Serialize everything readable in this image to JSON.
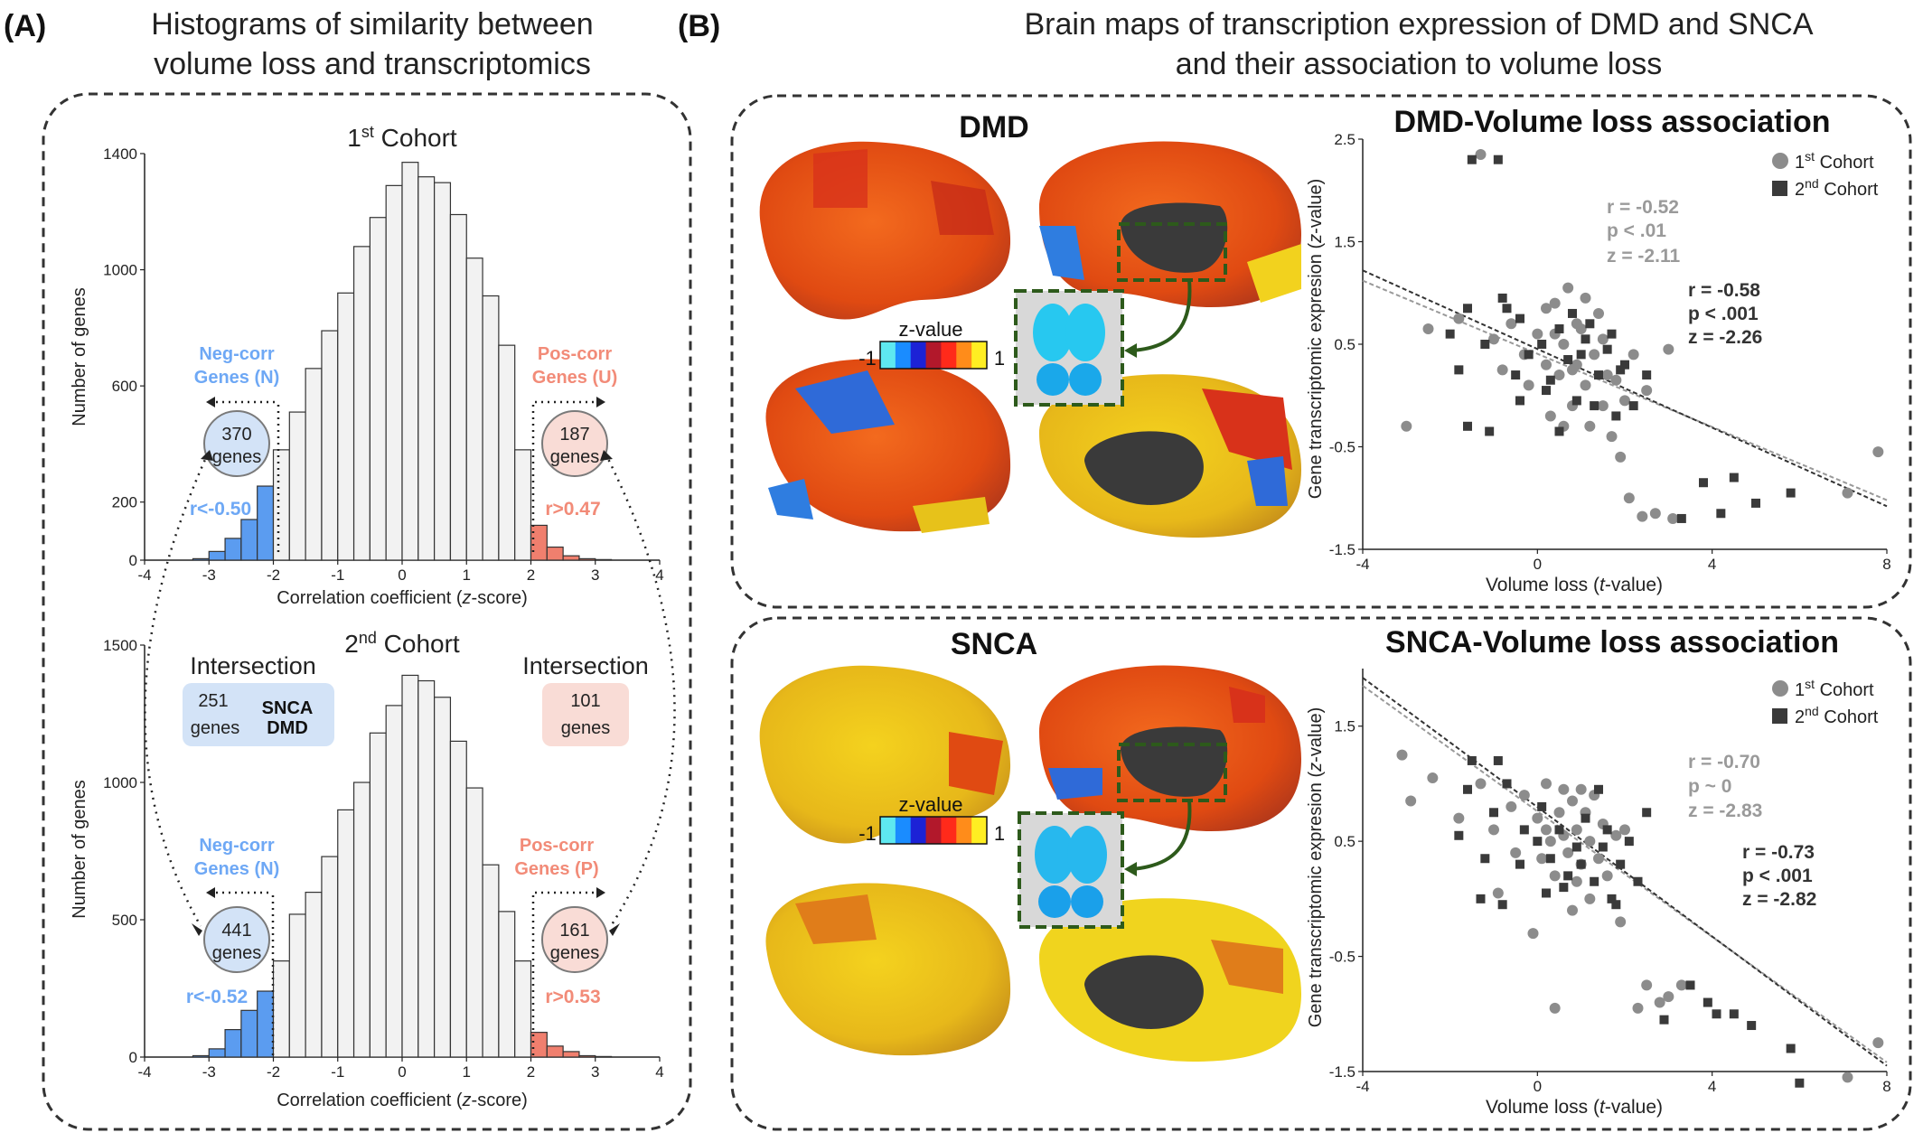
{
  "panel_a": {
    "label": "(A)",
    "title_line1": "Histograms of similarity between",
    "title_line2": "volume loss and transcriptomics",
    "cohort1_title": "1",
    "cohort1_sup": "st",
    "cohort1_rest": " Cohort",
    "cohort2_title": "2",
    "cohort2_sup": "nd",
    "cohort2_rest": " Cohort",
    "ylabel": "Number of genes",
    "xlabel": "Correlation coefficient (",
    "xlabel_italic": "z",
    "xlabel_end": "-score)",
    "top": {
      "neg_label1": "Neg-corr",
      "neg_label2": "Genes (N)",
      "pos_label1": "Pos-corr",
      "pos_label2": "Genes (U)",
      "neg_count": "370",
      "pos_count": "187",
      "genes_word": "genes",
      "neg_thresh": "r<-0.50",
      "pos_thresh": "r>0.47"
    },
    "bottom": {
      "neg_label1": "Neg-corr",
      "neg_label2": "Genes (N)",
      "pos_label1": "Pos-corr",
      "pos_label2": "Genes (P)",
      "neg_count": "441",
      "pos_count": "161",
      "genes_word": "genes",
      "neg_thresh": "r<-0.52",
      "pos_thresh": "r>0.53"
    },
    "intersection_word": "Intersection",
    "inter_left_count": "251",
    "inter_left_genes": "genes",
    "inter_left_g1": "SNCA",
    "inter_left_g2": "DMD",
    "inter_right_count": "101",
    "inter_right_genes": "genes"
  },
  "panel_b": {
    "label": "(B)",
    "title_line1": "Brain maps of transcription expression of DMD and SNCA",
    "title_line2": "and their association to volume loss",
    "dmd_title": "DMD",
    "snca_title": "SNCA",
    "dmd_scatter_title": "DMD-Volume loss association",
    "snca_scatter_title": "SNCA-Volume loss association",
    "colorbar_label": "z-value",
    "colorbar_min": "-1",
    "colorbar_max": "1",
    "colorbar_colors": [
      "#5ee8f0",
      "#1a8cff",
      "#1c22d6",
      "#b2182b",
      "#ff2a1a",
      "#ff8c1a",
      "#ffee22"
    ],
    "legend_c1": "1",
    "legend_c1_sup": "st",
    "legend_c1_rest": " Cohort",
    "legend_c2": "2",
    "legend_c2_sup": "nd",
    "legend_c2_rest": " Cohort",
    "scatter_ylabel_a": "Gene transcriptomic expresion (",
    "scatter_ylabel_i": "z",
    "scatter_ylabel_b": "-value)",
    "scatter_xlabel_a": "Volume loss (",
    "scatter_xlabel_i": "t",
    "scatter_xlabel_b": "-value)",
    "dmd_stats1": [
      "r = -0.52",
      "p < .01",
      "z =  -2.11"
    ],
    "dmd_stats2": [
      "r = -0.58",
      "p < .001",
      "z =  -2.26"
    ],
    "snca_stats1": [
      "r = -0.70",
      "p ~ 0",
      "z =  -2.83"
    ],
    "snca_stats2": [
      "r = -0.73",
      "p < .001",
      "z =  -2.82"
    ]
  },
  "colors": {
    "neg_bar": "#5b9cf0",
    "pos_bar": "#f07f6e",
    "neg_text": "#6ea8f5",
    "pos_text": "#f28b78",
    "bar_neutral": "#f2f2f2",
    "cohort1_marker": "#8c8c8c",
    "cohort2_marker": "#3a3a3a"
  },
  "chart_data": [
    {
      "type": "bar",
      "title": "1st Cohort",
      "xlabel": "Correlation coefficient (z-score)",
      "ylabel": "Number of genes",
      "xlim": [
        -4,
        4
      ],
      "ylim": [
        0,
        1400
      ],
      "bin_width": 0.25,
      "x": [
        -3.125,
        -2.875,
        -2.625,
        -2.375,
        -2.125,
        -1.875,
        -1.625,
        -1.375,
        -1.125,
        -0.875,
        -0.625,
        -0.375,
        -0.125,
        0.125,
        0.375,
        0.625,
        0.875,
        1.125,
        1.375,
        1.625,
        1.875,
        2.125,
        2.375,
        2.625,
        2.875,
        3.125
      ],
      "values": [
        5,
        30,
        75,
        140,
        255,
        380,
        510,
        660,
        790,
        920,
        1080,
        1180,
        1290,
        1370,
        1320,
        1300,
        1190,
        1040,
        910,
        740,
        380,
        120,
        45,
        15,
        5,
        2
      ],
      "highlight_neg_below": -2,
      "highlight_pos_above": 2
    },
    {
      "type": "bar",
      "title": "2nd Cohort",
      "xlabel": "Correlation coefficient (z-score)",
      "ylabel": "Number of genes",
      "xlim": [
        -4,
        4
      ],
      "ylim": [
        0,
        1500
      ],
      "bin_width": 0.25,
      "x": [
        -3.125,
        -2.875,
        -2.625,
        -2.375,
        -2.125,
        -1.875,
        -1.625,
        -1.375,
        -1.125,
        -0.875,
        -0.625,
        -0.375,
        -0.125,
        0.125,
        0.375,
        0.625,
        0.875,
        1.125,
        1.375,
        1.625,
        1.875,
        2.125,
        2.375,
        2.625,
        2.875,
        3.125
      ],
      "values": [
        5,
        30,
        100,
        170,
        240,
        350,
        520,
        600,
        730,
        900,
        1000,
        1180,
        1280,
        1390,
        1370,
        1310,
        1150,
        980,
        700,
        530,
        350,
        90,
        40,
        20,
        5,
        2
      ],
      "highlight_neg_below": -2,
      "highlight_pos_above": 2
    },
    {
      "type": "scatter",
      "title": "DMD-Volume loss association",
      "xlabel": "Volume loss (t-value)",
      "ylabel": "Gene transcriptomic expresion (z-value)",
      "xlim": [
        -4,
        8
      ],
      "ylim": [
        -1.5,
        2.5
      ],
      "xticks": [
        -4,
        0,
        4,
        8
      ],
      "yticks": [
        -1.5,
        -0.5,
        0.5,
        1.5,
        2.5
      ],
      "legend_position": "top-right",
      "series": [
        {
          "name": "1st Cohort",
          "marker": "circle",
          "points": [
            [
              -1.3,
              2.35
            ],
            [
              -2.5,
              0.65
            ],
            [
              -3.0,
              -0.3
            ],
            [
              -1.8,
              0.75
            ],
            [
              -1.0,
              0.55
            ],
            [
              -0.6,
              0.7
            ],
            [
              -0.3,
              0.4
            ],
            [
              0.0,
              0.6
            ],
            [
              0.2,
              0.3
            ],
            [
              0.4,
              0.9
            ],
            [
              0.5,
              0.2
            ],
            [
              0.6,
              0.5
            ],
            [
              0.7,
              1.05
            ],
            [
              0.8,
              -0.1
            ],
            [
              0.9,
              0.3
            ],
            [
              1.0,
              0.65
            ],
            [
              1.1,
              0.1
            ],
            [
              1.2,
              -0.3
            ],
            [
              1.3,
              0.4
            ],
            [
              1.4,
              0.8
            ],
            [
              1.5,
              -0.1
            ],
            [
              1.6,
              0.2
            ],
            [
              1.7,
              -0.4
            ],
            [
              1.8,
              0.15
            ],
            [
              2.0,
              -0.05
            ],
            [
              2.2,
              0.4
            ],
            [
              0.3,
              -0.2
            ],
            [
              -0.2,
              0.1
            ],
            [
              0.6,
              -0.3
            ],
            [
              0.9,
              0.7
            ],
            [
              1.1,
              0.95
            ],
            [
              0.4,
              0.6
            ],
            [
              0.8,
              0.25
            ],
            [
              1.9,
              -0.6
            ],
            [
              2.1,
              -1.0
            ],
            [
              2.4,
              -1.18
            ],
            [
              2.7,
              -1.15
            ],
            [
              3.1,
              -1.2
            ],
            [
              2.5,
              0.05
            ],
            [
              -0.8,
              0.25
            ],
            [
              7.8,
              -0.55
            ],
            [
              7.1,
              -0.95
            ],
            [
              0.2,
              0.85
            ],
            [
              1.5,
              0.55
            ],
            [
              3.0,
              0.45
            ]
          ]
        },
        {
          "name": "2nd Cohort",
          "marker": "square",
          "points": [
            [
              -1.5,
              2.3
            ],
            [
              -0.9,
              2.3
            ],
            [
              -1.6,
              0.85
            ],
            [
              -1.2,
              0.5
            ],
            [
              -2.0,
              0.6
            ],
            [
              -1.8,
              0.25
            ],
            [
              -0.7,
              0.85
            ],
            [
              -0.4,
              0.75
            ],
            [
              -0.2,
              0.4
            ],
            [
              0.1,
              0.5
            ],
            [
              0.3,
              0.15
            ],
            [
              0.5,
              0.65
            ],
            [
              0.7,
              0.35
            ],
            [
              0.9,
              -0.05
            ],
            [
              1.0,
              0.4
            ],
            [
              1.2,
              0.7
            ],
            [
              1.4,
              0.2
            ],
            [
              1.6,
              0.45
            ],
            [
              1.8,
              -0.2
            ],
            [
              2.0,
              0.3
            ],
            [
              2.2,
              -0.1
            ],
            [
              -0.4,
              -0.05
            ],
            [
              -0.8,
              0.95
            ],
            [
              0.5,
              -0.35
            ],
            [
              1.3,
              -0.1
            ],
            [
              1.7,
              0.6
            ],
            [
              -1.1,
              -0.35
            ],
            [
              -1.6,
              -0.3
            ],
            [
              1.9,
              0.25
            ],
            [
              4.2,
              -1.15
            ],
            [
              3.3,
              -1.2
            ],
            [
              4.5,
              -0.8
            ],
            [
              5.0,
              -1.05
            ],
            [
              5.8,
              -0.95
            ],
            [
              3.8,
              -0.85
            ],
            [
              0.8,
              0.8
            ],
            [
              2.5,
              0.2
            ],
            [
              -0.5,
              0.2
            ],
            [
              1.1,
              0.55
            ],
            [
              0.2,
              0.05
            ]
          ]
        }
      ],
      "fit_lines": [
        {
          "name": "1st Cohort",
          "x": [
            -4,
            8
          ],
          "y": [
            1.12,
            -1.02
          ]
        },
        {
          "name": "2nd Cohort",
          "x": [
            -4,
            8
          ],
          "y": [
            1.22,
            -1.08
          ]
        }
      ]
    },
    {
      "type": "scatter",
      "title": "SNCA-Volume loss association",
      "xlabel": "Volume loss (t-value)",
      "ylabel": "Gene transcriptomic expresion (z-value)",
      "xlim": [
        -4,
        8
      ],
      "ylim": [
        -1.5,
        2.0
      ],
      "xticks": [
        -4,
        0,
        4,
        8
      ],
      "yticks": [
        -1.5,
        -0.5,
        0.5,
        1.5
      ],
      "legend_position": "top-right",
      "series": [
        {
          "name": "1st Cohort",
          "marker": "circle",
          "points": [
            [
              -3.1,
              1.25
            ],
            [
              -2.9,
              0.85
            ],
            [
              -2.4,
              1.05
            ],
            [
              -1.8,
              0.7
            ],
            [
              -1.3,
              1.0
            ],
            [
              -1.0,
              0.6
            ],
            [
              -0.6,
              0.8
            ],
            [
              -0.3,
              0.9
            ],
            [
              0.0,
              0.7
            ],
            [
              0.2,
              1.0
            ],
            [
              0.3,
              0.5
            ],
            [
              0.5,
              0.75
            ],
            [
              0.6,
              0.95
            ],
            [
              0.7,
              0.4
            ],
            [
              0.8,
              0.85
            ],
            [
              0.9,
              0.6
            ],
            [
              1.0,
              0.3
            ],
            [
              1.1,
              0.75
            ],
            [
              1.2,
              0.5
            ],
            [
              1.3,
              0.9
            ],
            [
              1.4,
              0.35
            ],
            [
              1.5,
              0.65
            ],
            [
              1.6,
              0.2
            ],
            [
              1.8,
              0.55
            ],
            [
              2.0,
              0.6
            ],
            [
              0.1,
              0.35
            ],
            [
              -0.5,
              0.4
            ],
            [
              0.4,
              0.2
            ],
            [
              0.9,
              0.15
            ],
            [
              1.2,
              0.0
            ],
            [
              0.8,
              -0.1
            ],
            [
              1.9,
              -0.2
            ],
            [
              2.5,
              -0.75
            ],
            [
              2.8,
              -0.9
            ],
            [
              2.3,
              -0.95
            ],
            [
              3.0,
              -0.85
            ],
            [
              3.3,
              -0.75
            ],
            [
              0.4,
              -0.95
            ],
            [
              -0.1,
              -0.3
            ],
            [
              7.8,
              -1.25
            ],
            [
              7.1,
              -1.55
            ],
            [
              -0.9,
              0.05
            ],
            [
              0.6,
              0.55
            ],
            [
              1.0,
              0.95
            ],
            [
              0.2,
              0.6
            ]
          ]
        },
        {
          "name": "2nd Cohort",
          "marker": "square",
          "points": [
            [
              -1.5,
              1.2
            ],
            [
              -0.9,
              1.2
            ],
            [
              -1.6,
              0.95
            ],
            [
              -1.0,
              0.75
            ],
            [
              -1.8,
              0.55
            ],
            [
              -1.2,
              0.35
            ],
            [
              -0.7,
              1.0
            ],
            [
              -0.3,
              0.6
            ],
            [
              0.1,
              0.8
            ],
            [
              0.3,
              0.35
            ],
            [
              0.5,
              0.6
            ],
            [
              0.7,
              0.2
            ],
            [
              0.9,
              0.45
            ],
            [
              1.1,
              0.7
            ],
            [
              1.3,
              0.15
            ],
            [
              1.5,
              0.45
            ],
            [
              1.7,
              0.0
            ],
            [
              1.9,
              0.3
            ],
            [
              2.1,
              0.5
            ],
            [
              2.5,
              0.75
            ],
            [
              1.4,
              0.95
            ],
            [
              -0.4,
              0.3
            ],
            [
              -1.3,
              0.0
            ],
            [
              -0.8,
              -0.05
            ],
            [
              0.2,
              0.05
            ],
            [
              1.0,
              0.3
            ],
            [
              1.8,
              -0.05
            ],
            [
              2.3,
              0.15
            ],
            [
              4.1,
              -1.0
            ],
            [
              3.5,
              -0.75
            ],
            [
              4.5,
              -1.0
            ],
            [
              4.9,
              -1.1
            ],
            [
              5.8,
              -1.3
            ],
            [
              6.0,
              -1.6
            ],
            [
              3.9,
              -0.9
            ],
            [
              2.9,
              -1.05
            ],
            [
              0.6,
              0.1
            ],
            [
              1.6,
              0.6
            ],
            [
              0.0,
              0.5
            ]
          ]
        }
      ],
      "fit_lines": [
        {
          "name": "1st Cohort",
          "x": [
            -4,
            8
          ],
          "y": [
            1.85,
            -1.42
          ]
        },
        {
          "name": "2nd Cohort",
          "x": [
            -4,
            8
          ],
          "y": [
            1.92,
            -1.45
          ]
        }
      ]
    }
  ]
}
